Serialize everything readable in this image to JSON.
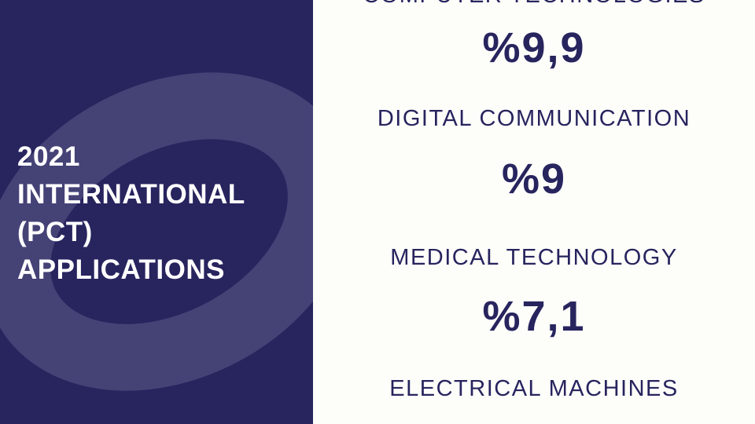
{
  "panel": {
    "title_lines": [
      "2021",
      "INTERNATIONAL",
      "(PCT)",
      "APPLICATIONS"
    ],
    "background_color": "#27245e",
    "swoosh_color": "#454276"
  },
  "stats": [
    {
      "label": "COMPUTER TECHNOLOGIES",
      "value": "%9,9"
    },
    {
      "label": "DIGITAL COMMUNICATION",
      "value": "%9"
    },
    {
      "label": "MEDICAL TECHNOLOGY",
      "value": "%7,1"
    },
    {
      "label": "ELECTRICAL MACHINES",
      "value": ""
    }
  ],
  "text_color": "#27245e"
}
